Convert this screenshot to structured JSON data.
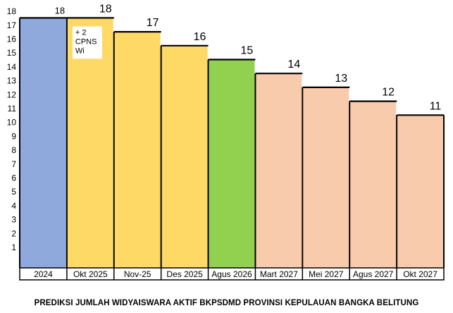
{
  "chart_data": {
    "type": "bar",
    "title": "PREDIKSI JUMLAH WIDYAISWARA AKTIF BKPSDMD PROVINSI KEPULAUAN BANGKA BELITUNG",
    "xlabel": "",
    "ylabel": "",
    "ylim": [
      0,
      18
    ],
    "yticks": [
      1,
      2,
      3,
      4,
      5,
      6,
      7,
      8,
      9,
      10,
      11,
      12,
      13,
      14,
      15,
      16,
      17,
      18
    ],
    "categories": [
      "2024",
      "Okt 2025",
      "Nov-25",
      "Des 2025",
      "Agus 2026",
      "Mart 2027",
      "Mei 2027",
      "Agus 2027",
      "Okt 2027"
    ],
    "values": [
      18,
      18,
      17,
      16,
      15,
      14,
      13,
      12,
      11
    ],
    "data_labels": [
      "18",
      "18",
      "17",
      "16",
      "15",
      "14",
      "13",
      "12",
      "11"
    ],
    "colors": [
      "#8FA9DC",
      "#FFD966",
      "#FFD966",
      "#FFD966",
      "#92D050",
      "#F8CBAD",
      "#F8CBAD",
      "#F8CBAD",
      "#F8CBAD"
    ],
    "annotation": {
      "category": "Okt 2025",
      "lines": [
        "+ 2",
        "CPNS",
        "Wi"
      ]
    },
    "grid": false,
    "legend": "none"
  }
}
